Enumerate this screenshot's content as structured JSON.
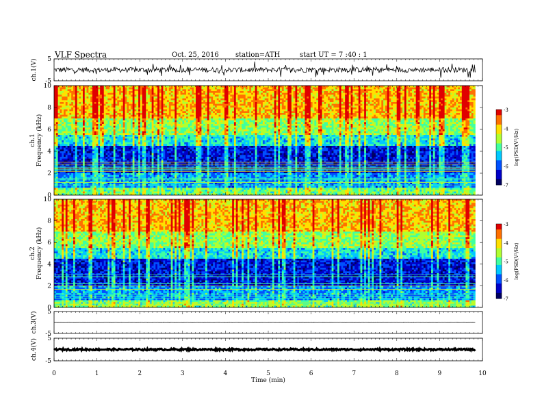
{
  "header": {
    "title": "VLF  Spectra",
    "date": "Oct. 25, 2016",
    "station": "station=ATH",
    "start": "start  UT  =   7  :40 : 1"
  },
  "chart_data": {
    "type": "heatmap",
    "xlabel": "Time  (min)",
    "xlim": [
      0,
      10
    ],
    "x_ticks": [
      "0",
      "1",
      "2",
      "3",
      "4",
      "5",
      "6",
      "7",
      "8",
      "9",
      "10"
    ],
    "data_extent_min": 9.83,
    "panels": [
      {
        "name": "ch.1",
        "type": "line",
        "ylabel": "ch.1(V)",
        "ylim": [
          -5,
          5
        ],
        "y_ticks": [
          "5",
          "-5"
        ],
        "description_level": 0.0,
        "noise_amplitude": 1.2,
        "color": "#000000"
      },
      {
        "name": "ch.1",
        "type": "heatmap",
        "ylabel_top": "ch.1",
        "ylabel": "Frequency  (kHz)",
        "ylim": [
          0,
          10
        ],
        "y_ticks": [
          "0",
          "2",
          "4",
          "6",
          "8",
          "10"
        ],
        "colorbar": {
          "label": "log(PSD(V²/Hz)",
          "range": [
            -7,
            -3
          ],
          "ticks": [
            "-3",
            "-4",
            "-5",
            "-6",
            "-7"
          ]
        }
      },
      {
        "name": "ch.2",
        "type": "heatmap",
        "ylabel_top": "ch.2",
        "ylabel": "Frequency  (kHz)",
        "ylim": [
          0,
          10
        ],
        "y_ticks": [
          "0",
          "2",
          "4",
          "6",
          "8",
          "10"
        ],
        "colorbar": {
          "label": "log(PSD(V²/Hz)",
          "range": [
            -7,
            -3
          ],
          "ticks": [
            "-3",
            "-4",
            "-5",
            "-6",
            "-7"
          ]
        }
      },
      {
        "name": "ch.3",
        "type": "line",
        "ylabel": "ch.3(V)",
        "ylim": [
          -5,
          5
        ],
        "y_ticks": [
          "5",
          "-5"
        ],
        "level": 0.0,
        "noise_amplitude": 0.05,
        "color": "#000000"
      },
      {
        "name": "ch.4",
        "type": "line",
        "ylabel": "ch.4(V)",
        "ylim": [
          -5,
          5
        ],
        "y_ticks": [
          "5",
          "-5"
        ],
        "level": 0.0,
        "noise_amplitude": 0.4,
        "color": "#000000"
      }
    ],
    "colormap": [
      "#000060",
      "#0000c8",
      "#0050ff",
      "#00c8ff",
      "#40ffa0",
      "#b0ff30",
      "#ffe000",
      "#ff7000",
      "#e00000",
      "#ffffff"
    ]
  }
}
